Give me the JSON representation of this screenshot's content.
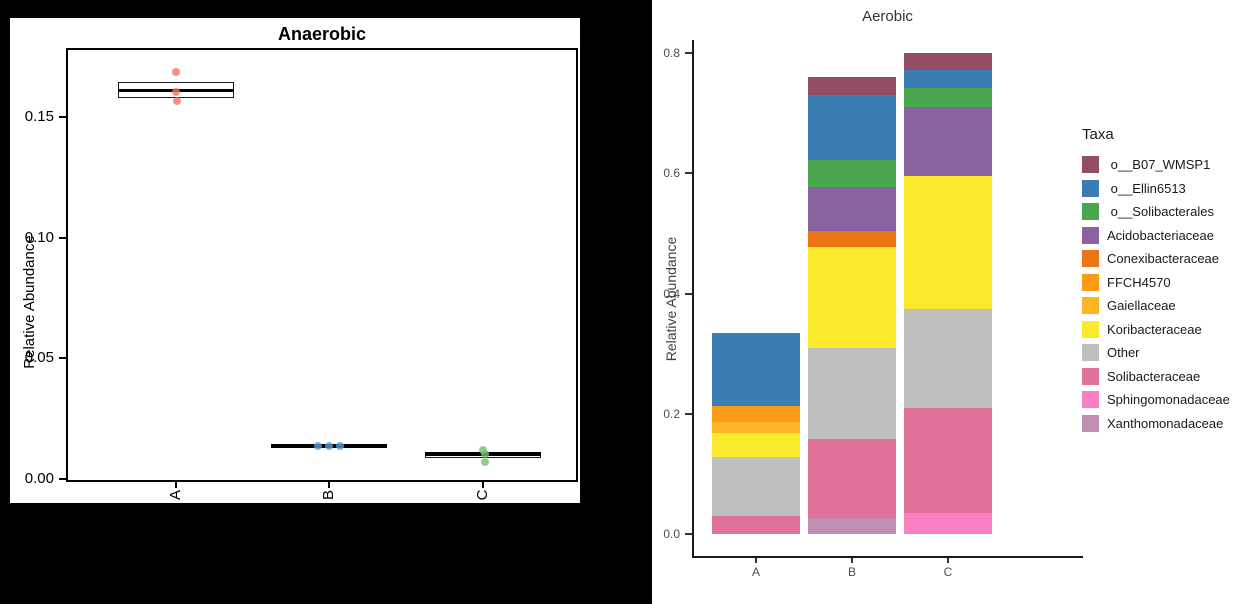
{
  "canvas": {
    "background": "#000000"
  },
  "chart_data": [
    {
      "type": "boxplot",
      "title": "Anaerobic",
      "ylabel": "Relative Abundance",
      "xlabel": "",
      "categories": [
        "A",
        "B",
        "C"
      ],
      "ylim": [
        0,
        0.1786
      ],
      "grid": false,
      "yticks": [
        {
          "label": "0.00",
          "value": 0.0
        },
        {
          "label": "0.05",
          "value": 0.05
        },
        {
          "label": "0.10",
          "value": 0.1
        },
        {
          "label": "0.15",
          "value": 0.15
        }
      ],
      "groups": [
        {
          "category": "A",
          "point_color": "#F0726D",
          "q1": 0.158,
          "median": 0.161,
          "q3": 0.1645,
          "points": [
            {
              "dx": 0,
              "v": 0.1688
            },
            {
              "dx": 0,
              "v": 0.1603
            },
            {
              "dx": 1,
              "v": 0.1568
            }
          ]
        },
        {
          "category": "B",
          "point_color": "#5B9BD5",
          "q1": 0.0133,
          "median": 0.0136,
          "q3": 0.014,
          "points": [
            {
              "dx": -11,
              "v": 0.0135
            },
            {
              "dx": 0,
              "v": 0.0136
            },
            {
              "dx": 11,
              "v": 0.0135
            }
          ]
        },
        {
          "category": "C",
          "point_color": "#74C36E",
          "q1": 0.0089,
          "median": 0.0104,
          "q3": 0.011,
          "points": [
            {
              "dx": 0,
              "v": 0.0122
            },
            {
              "dx": 2,
              "v": 0.0104
            },
            {
              "dx": 2,
              "v": 0.007
            }
          ]
        }
      ]
    },
    {
      "type": "bar",
      "stacked": true,
      "title": "Aerobic",
      "ylabel": "Relative Abundance",
      "xlabel": "",
      "categories": [
        "A",
        "B",
        "C"
      ],
      "ylim": [
        0,
        0.82
      ],
      "grid": false,
      "legend_title": "Taxa",
      "legend_position": "right",
      "yticks": [
        {
          "label": "0.0",
          "value": 0.0
        },
        {
          "label": "0.2",
          "value": 0.2
        },
        {
          "label": "0.4",
          "value": 0.4
        },
        {
          "label": "0.6",
          "value": 0.6
        },
        {
          "label": "0.8",
          "value": 0.8
        }
      ],
      "taxa": [
        {
          "label": " o__B07_WMSP1",
          "key": "o__B07_WMSP1",
          "color": "#934D66"
        },
        {
          "label": " o__Ellin6513",
          "key": "o__Ellin6513",
          "color": "#3B7CB2"
        },
        {
          "label": " o__Solibacterales",
          "key": "o__Solibacterales",
          "color": "#4BA74F"
        },
        {
          "label": "Acidobacteriaceae",
          "key": "Acidobacteriaceae",
          "color": "#8A62A0"
        },
        {
          "label": "Conexibacteraceae",
          "key": "Conexibacteraceae",
          "color": "#EC7515"
        },
        {
          "label": "FFCH4570",
          "key": "FFCH4570",
          "color": "#FA9C13"
        },
        {
          "label": "Gaiellaceae",
          "key": "Gaiellaceae",
          "color": "#FBB525"
        },
        {
          "label": "Koribacteraceae",
          "key": "Koribacteraceae",
          "color": "#FBE92C"
        },
        {
          "label": "Other",
          "key": "Other",
          "color": "#BFBFBF"
        },
        {
          "label": "Solibacteraceae",
          "key": "Solibacteraceae",
          "color": "#E0719B"
        },
        {
          "label": "Sphingomonadaceae",
          "key": "Sphingomonadaceae",
          "color": "#F77FC2"
        },
        {
          "label": "Xanthomonadaceae",
          "key": "Xanthomonadaceae",
          "color": "#C08FB1"
        }
      ],
      "bars": [
        {
          "category": "A",
          "total": 0.334,
          "segments": [
            {
              "taxon": "Solibacteraceae",
              "value": 0.03
            },
            {
              "taxon": "Other",
              "value": 0.098
            },
            {
              "taxon": "Koribacteraceae",
              "value": 0.04
            },
            {
              "taxon": "Gaiellaceae",
              "value": 0.018
            },
            {
              "taxon": "FFCH4570",
              "value": 0.027
            },
            {
              "taxon": "o__Ellin6513",
              "value": 0.121
            }
          ]
        },
        {
          "category": "B",
          "total": 0.76,
          "segments": [
            {
              "taxon": "Xanthomonadaceae",
              "value": 0.027
            },
            {
              "taxon": "Solibacteraceae",
              "value": 0.131
            },
            {
              "taxon": "Other",
              "value": 0.152
            },
            {
              "taxon": "Koribacteraceae",
              "value": 0.168
            },
            {
              "taxon": "Conexibacteraceae",
              "value": 0.026
            },
            {
              "taxon": "Acidobacteriaceae",
              "value": 0.073
            },
            {
              "taxon": "o__Solibacterales",
              "value": 0.045
            },
            {
              "taxon": "o__Ellin6513",
              "value": 0.108
            },
            {
              "taxon": "o__B07_WMSP1",
              "value": 0.03
            }
          ]
        },
        {
          "category": "C",
          "total": 0.8,
          "segments": [
            {
              "taxon": "Sphingomonadaceae",
              "value": 0.035
            },
            {
              "taxon": "Solibacteraceae",
              "value": 0.175
            },
            {
              "taxon": "Other",
              "value": 0.165
            },
            {
              "taxon": "Koribacteraceae",
              "value": 0.22
            },
            {
              "taxon": "Acidobacteriaceae",
              "value": 0.115
            },
            {
              "taxon": "o__Solibacterales",
              "value": 0.032
            },
            {
              "taxon": "o__Ellin6513",
              "value": 0.03
            },
            {
              "taxon": "o__B07_WMSP1",
              "value": 0.028
            }
          ]
        }
      ]
    }
  ]
}
